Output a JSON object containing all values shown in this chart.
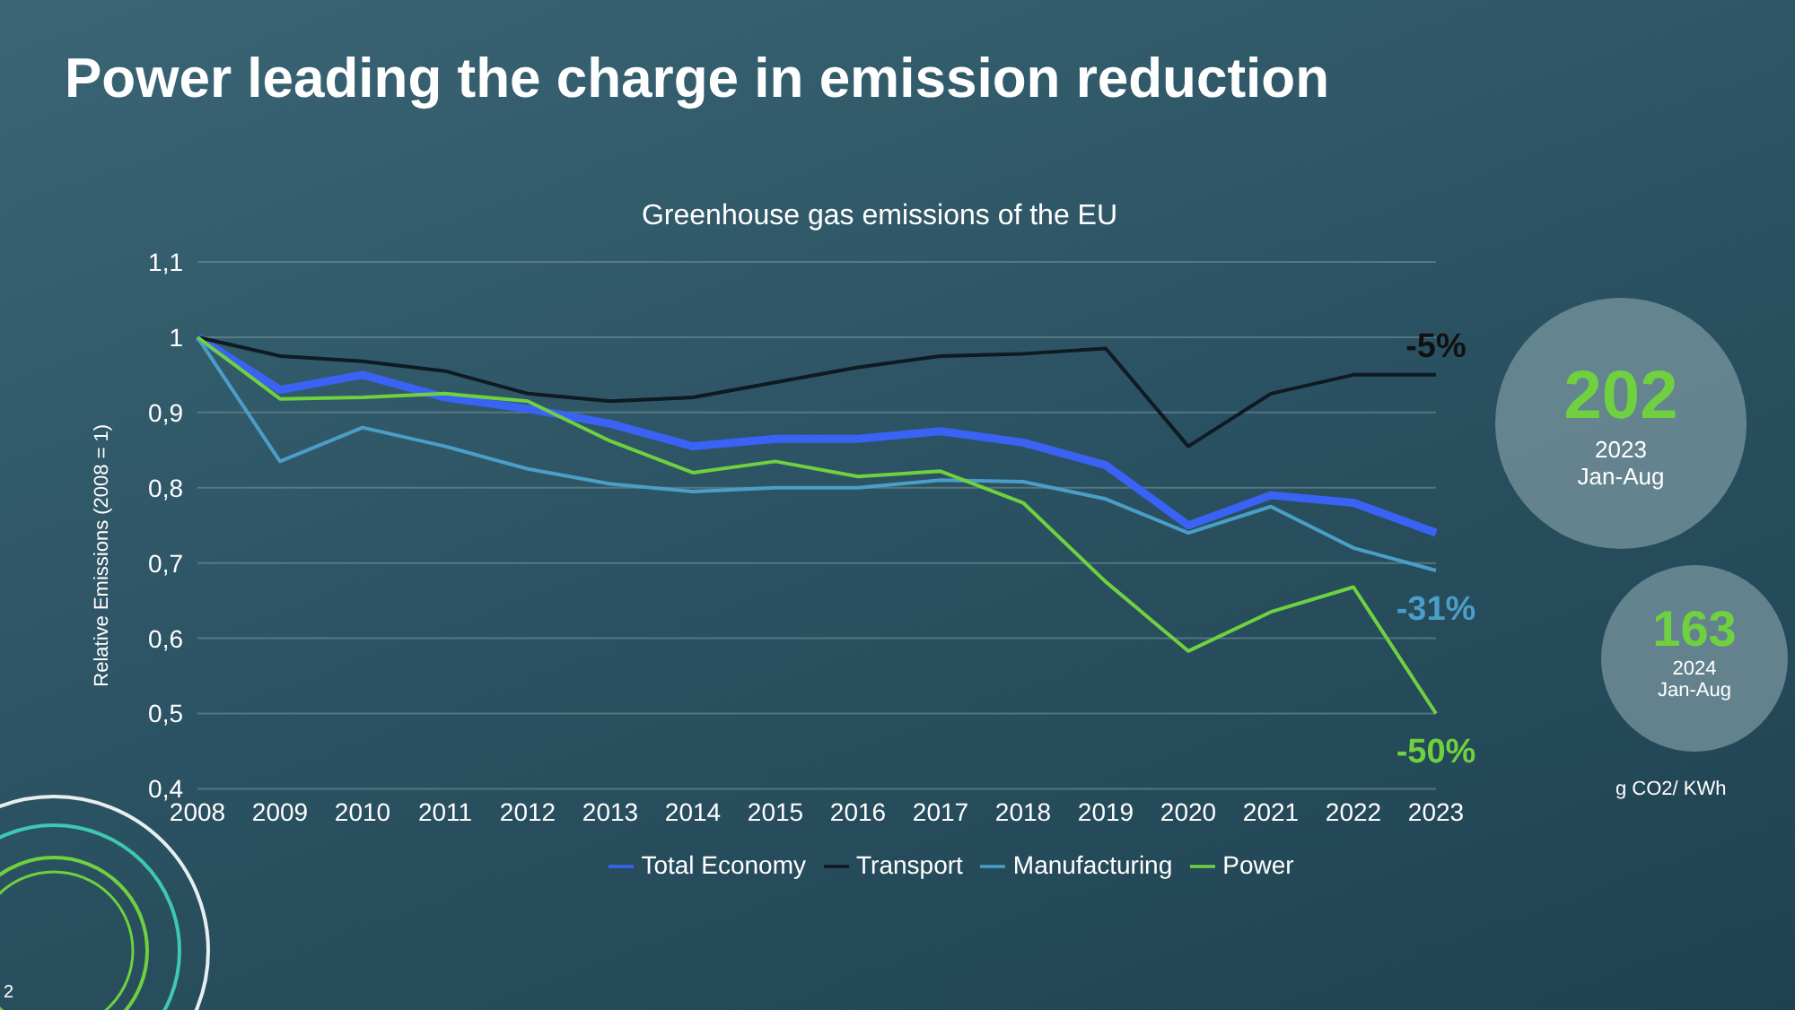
{
  "chart_data": {
    "type": "line",
    "title": "Power leading the charge in emission reduction",
    "subtitle": "Greenhouse gas emissions of the EU",
    "ylabel": "Relative Emissions (2008 = 1)",
    "categories": [
      "2008",
      "2009",
      "2010",
      "2011",
      "2012",
      "2013",
      "2014",
      "2015",
      "2016",
      "2017",
      "2018",
      "2019",
      "2020",
      "2021",
      "2022",
      "2023"
    ],
    "series": [
      {
        "name": "Total Economy",
        "color": "#3a63f5",
        "values": [
          1.0,
          0.93,
          0.95,
          0.92,
          0.905,
          0.885,
          0.855,
          0.865,
          0.865,
          0.875,
          0.86,
          0.83,
          0.75,
          0.79,
          0.78,
          0.74
        ]
      },
      {
        "name": "Transport",
        "color": "#0f1a22",
        "values": [
          1.0,
          0.975,
          0.968,
          0.955,
          0.925,
          0.915,
          0.92,
          0.94,
          0.96,
          0.975,
          0.978,
          0.985,
          0.855,
          0.925,
          0.95,
          0.95
        ]
      },
      {
        "name": "Manufacturing",
        "color": "#4a9ec8",
        "values": [
          1.0,
          0.835,
          0.88,
          0.855,
          0.825,
          0.805,
          0.795,
          0.8,
          0.8,
          0.81,
          0.808,
          0.785,
          0.74,
          0.775,
          0.72,
          0.69
        ]
      },
      {
        "name": "Power",
        "color": "#6fd13f",
        "values": [
          1.0,
          0.918,
          0.92,
          0.925,
          0.915,
          0.862,
          0.82,
          0.835,
          0.815,
          0.822,
          0.78,
          0.675,
          0.583,
          0.635,
          0.668,
          0.5
        ]
      }
    ],
    "ylim": [
      0.4,
      1.1
    ],
    "yticks": [
      {
        "value": 0.4,
        "label": "0,4"
      },
      {
        "value": 0.5,
        "label": "0,5"
      },
      {
        "value": 0.6,
        "label": "0,6"
      },
      {
        "value": 0.7,
        "label": "0,7"
      },
      {
        "value": 0.8,
        "label": "0,8"
      },
      {
        "value": 0.9,
        "label": "0,9"
      },
      {
        "value": 1,
        "label": "1"
      },
      {
        "value": 1.1,
        "label": "1,1"
      }
    ],
    "grid": "y",
    "legend": "bottom",
    "marker": "none",
    "line_style": "solid",
    "annotations": [
      {
        "text": "-5%",
        "x": "2023",
        "y": 0.95
      },
      {
        "text": "-31%",
        "x": "2023",
        "y": 0.69
      },
      {
        "text": "-50%",
        "x": "2023",
        "y": 0.5
      },
      "202",
      "2023",
      "Jan-Aug",
      "163",
      "2024",
      "Jan-Aug",
      "g CO2/ KWh",
      "2"
    ]
  }
}
